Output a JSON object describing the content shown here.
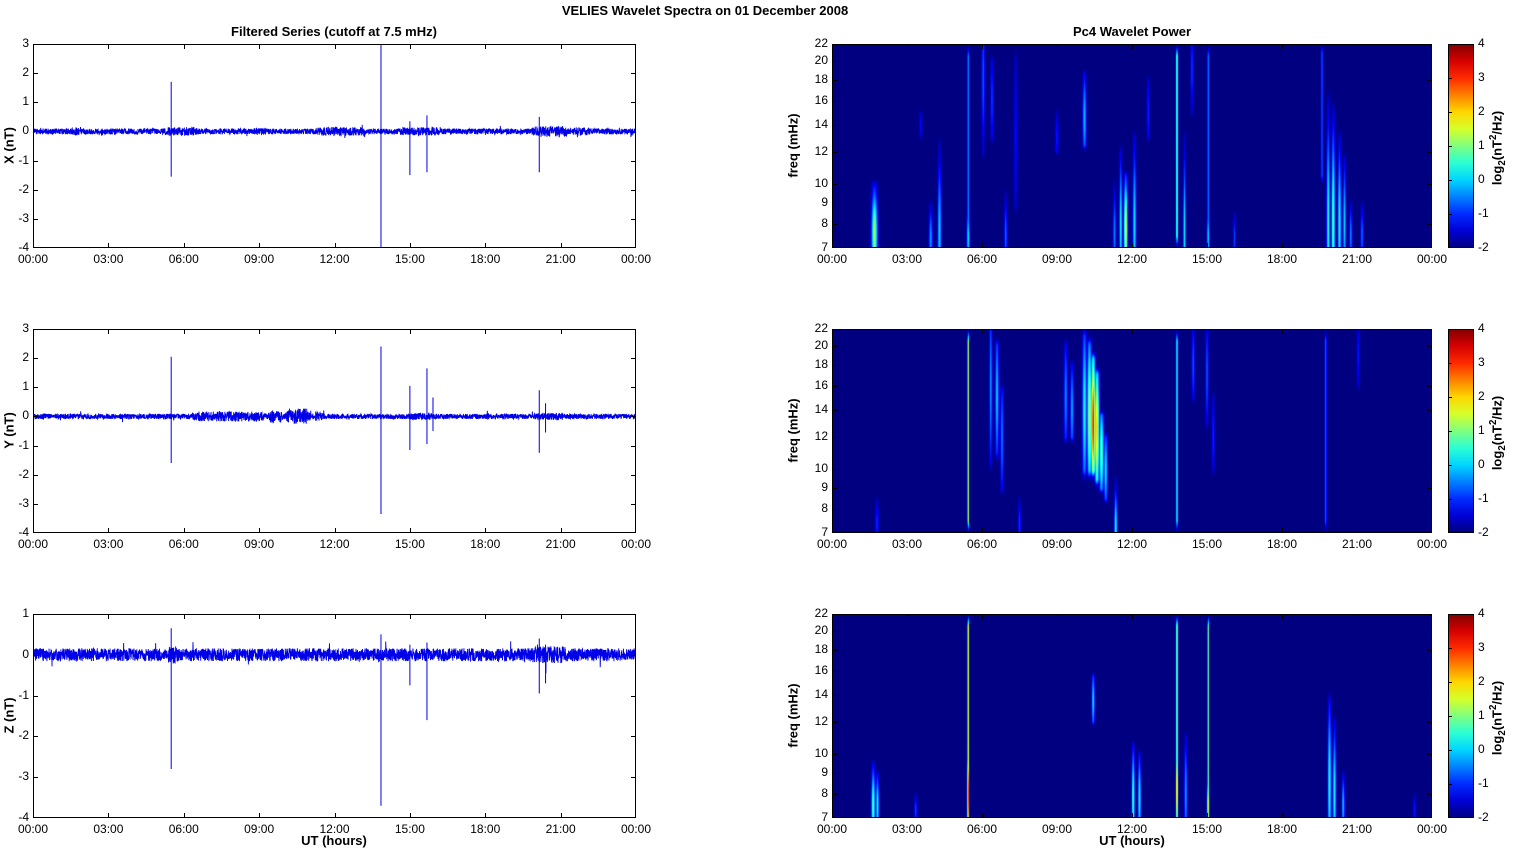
{
  "suptitle": "VELIES Wavelet Spectra on 01 December  2008",
  "titles": {
    "left": "Filtered Series (cutoff at 7.5 mHz)",
    "right": "Pc4 Wavelet Power"
  },
  "xlabel": "UT (hours)",
  "time_ticks": [
    "00:00",
    "03:00",
    "06:00",
    "09:00",
    "12:00",
    "15:00",
    "18:00",
    "21:00",
    "00:00"
  ],
  "time_tick_hours": [
    0,
    3,
    6,
    9,
    12,
    15,
    18,
    21,
    24
  ],
  "colors": {
    "trace": "#0000e8",
    "axis": "#000000",
    "heatmap_floor": "#000080"
  },
  "colorbar": {
    "min": -2,
    "max": 4,
    "ticks": [
      4,
      3,
      2,
      1,
      0,
      -1,
      -2
    ],
    "label": {
      "pre": "log",
      "sub": "2",
      "mid": "(nT",
      "sup": "2",
      "post": "/Hz)"
    }
  },
  "chart_data": [
    {
      "panel": "ts-x",
      "type": "line",
      "ylabel": "X (nT)",
      "ylim": [
        -4,
        3
      ],
      "yticks": [
        3,
        2,
        1,
        0,
        -1,
        -2,
        -3,
        -4
      ],
      "xlim_hours": [
        0,
        24
      ],
      "noise_base": 0.1,
      "noise_segments": [
        [
          1.5,
          1.9,
          0.06
        ],
        [
          5.2,
          6.6,
          0.05
        ],
        [
          8.7,
          9.4,
          0.03
        ],
        [
          11.2,
          13.3,
          0.05
        ],
        [
          14.6,
          16.3,
          0.04
        ],
        [
          19.8,
          21.4,
          0.09
        ],
        [
          21.4,
          22.4,
          0.04
        ]
      ],
      "spikes": [
        {
          "t": 5.5,
          "up": 1.7,
          "down": -1.55
        },
        {
          "t": 13.85,
          "up": 3.0,
          "down": -4.0
        },
        {
          "t": 15.0,
          "up": 0.35,
          "down": -1.5
        },
        {
          "t": 15.68,
          "up": 0.55,
          "down": -1.4
        },
        {
          "t": 20.15,
          "up": 0.5,
          "down": -1.4
        }
      ]
    },
    {
      "panel": "ts-y",
      "type": "line",
      "ylabel": "Y (nT)",
      "ylim": [
        -4,
        3
      ],
      "yticks": [
        3,
        2,
        1,
        0,
        -1,
        -2,
        -3,
        -4
      ],
      "xlim_hours": [
        0,
        24
      ],
      "noise_base": 0.09,
      "noise_segments": [
        [
          6.3,
          9.3,
          0.08
        ],
        [
          9.3,
          10.0,
          0.12
        ],
        [
          10.0,
          11.1,
          0.18
        ],
        [
          11.1,
          11.6,
          0.08
        ],
        [
          14.8,
          16.1,
          0.03
        ],
        [
          19.9,
          21.2,
          0.04
        ]
      ],
      "spikes": [
        {
          "t": 5.5,
          "up": 2.05,
          "down": -1.6
        },
        {
          "t": 13.85,
          "up": 2.4,
          "down": -3.35
        },
        {
          "t": 15.0,
          "up": 1.05,
          "down": -1.15
        },
        {
          "t": 15.68,
          "up": 1.65,
          "down": -0.95
        },
        {
          "t": 15.92,
          "up": 0.65,
          "down": -0.5
        },
        {
          "t": 20.15,
          "up": 0.9,
          "down": -1.25
        },
        {
          "t": 20.4,
          "up": 0.45,
          "down": -0.55
        }
      ]
    },
    {
      "panel": "ts-z",
      "type": "line",
      "ylabel": "Z (nT)",
      "ylim": [
        -4,
        1
      ],
      "yticks": [
        1,
        0,
        -1,
        -2,
        -3,
        -4
      ],
      "xlim_hours": [
        0,
        24
      ],
      "noise_base": 0.16,
      "noise_segments": [
        [
          5.3,
          5.8,
          0.09
        ],
        [
          13.7,
          14.1,
          0.05
        ],
        [
          19.8,
          21.3,
          0.05
        ]
      ],
      "spikes": [
        {
          "t": 5.5,
          "up": 0.65,
          "down": -2.8
        },
        {
          "t": 13.85,
          "up": 0.5,
          "down": -3.7
        },
        {
          "t": 15.0,
          "up": 0.25,
          "down": -0.75
        },
        {
          "t": 15.68,
          "up": 0.3,
          "down": -1.6
        },
        {
          "t": 20.15,
          "up": 0.4,
          "down": -0.95
        },
        {
          "t": 20.4,
          "up": 0.25,
          "down": -0.7
        }
      ]
    },
    {
      "panel": "wav-x",
      "type": "heatmap",
      "ylabel": "freq (mHz)",
      "yscale": "log",
      "ylim_mhz": [
        7,
        22
      ],
      "yticks": [
        22,
        20,
        18,
        16,
        14,
        12,
        10,
        9,
        8,
        7
      ],
      "clim": [
        -2,
        4
      ],
      "xlim_hours": [
        0,
        24
      ],
      "events": [
        {
          "t": 1.7,
          "f0": 7,
          "f1": 10,
          "peak": 1.2,
          "st": 0.08,
          "fp": 7.6
        },
        {
          "t": 3.55,
          "f0": 13,
          "f1": 15,
          "peak": -1.2,
          "st": 0.04
        },
        {
          "t": 3.95,
          "f0": 7,
          "f1": 9,
          "peak": -0.3,
          "st": 0.05,
          "fp": 7.4
        },
        {
          "t": 4.3,
          "f0": 7,
          "f1": 12.5,
          "peak": 0.1,
          "st": 0.05,
          "fp": 7.6
        },
        {
          "t": 5.45,
          "f0": 7,
          "f1": 22,
          "peak": -0.4,
          "st": 0.03,
          "flat": true
        },
        {
          "t": 5.45,
          "f0": 7,
          "f1": 9,
          "peak": 0.2,
          "st": 0.04,
          "fp": 7.4
        },
        {
          "t": 6.05,
          "f0": 12,
          "f1": 22,
          "peak": -0.7,
          "st": 0.045,
          "fp": 18
        },
        {
          "t": 6.4,
          "f0": 13,
          "f1": 20,
          "peak": -0.9,
          "st": 0.045,
          "fp": 16
        },
        {
          "t": 6.95,
          "f0": 7,
          "f1": 9.5,
          "peak": -0.6,
          "st": 0.04,
          "fp": 7.5
        },
        {
          "t": 7.35,
          "f0": 9,
          "f1": 20,
          "peak": -1.2,
          "st": 0.05,
          "fp": 13
        },
        {
          "t": 9.0,
          "f0": 12,
          "f1": 15,
          "peak": -1.1,
          "st": 0.05,
          "fp": 13
        },
        {
          "t": 10.1,
          "f0": 12.5,
          "f1": 18.5,
          "peak": -0.1,
          "st": 0.05,
          "fp": 14.5
        },
        {
          "t": 11.3,
          "f0": 7,
          "f1": 10,
          "peak": -0.4,
          "st": 0.04,
          "fp": 7.6
        },
        {
          "t": 11.55,
          "f0": 7,
          "f1": 12,
          "peak": 0.3,
          "st": 0.04,
          "fp": 8
        },
        {
          "t": 11.75,
          "f0": 7,
          "f1": 10.5,
          "peak": 1.8,
          "st": 0.05,
          "fp": 7.8
        },
        {
          "t": 12.1,
          "f0": 7,
          "f1": 13,
          "peak": 0.2,
          "st": 0.045,
          "fp": 8
        },
        {
          "t": 12.65,
          "f0": 13,
          "f1": 18,
          "peak": -1.0,
          "st": 0.04,
          "fp": 15
        },
        {
          "t": 13.8,
          "f0": 7,
          "f1": 22,
          "peak": 1.3,
          "st": 0.024,
          "flat": true
        },
        {
          "t": 14.1,
          "f0": 7,
          "f1": 13,
          "peak": 0.3,
          "st": 0.035,
          "fp": 7.6
        },
        {
          "t": 14.4,
          "f0": 15,
          "f1": 22,
          "peak": -0.9,
          "st": 0.04,
          "fp": 19
        },
        {
          "t": 15.05,
          "f0": 7,
          "f1": 22,
          "peak": -0.5,
          "st": 0.03,
          "flat": true
        },
        {
          "t": 15.05,
          "f0": 7,
          "f1": 9,
          "peak": 0.1,
          "st": 0.035,
          "fp": 7.4
        },
        {
          "t": 16.1,
          "f0": 7,
          "f1": 8.5,
          "peak": -0.8,
          "st": 0.035,
          "fp": 7.4
        },
        {
          "t": 19.6,
          "f0": 10,
          "f1": 22,
          "peak": -0.7,
          "st": 0.03,
          "flat": true
        },
        {
          "t": 19.85,
          "f0": 7,
          "f1": 16,
          "peak": 0.5,
          "st": 0.045,
          "fp": 8
        },
        {
          "t": 20.05,
          "f0": 7,
          "f1": 15,
          "peak": 0.9,
          "st": 0.05,
          "fp": 8
        },
        {
          "t": 20.3,
          "f0": 7,
          "f1": 13,
          "peak": 0.5,
          "st": 0.045,
          "fp": 8
        },
        {
          "t": 20.5,
          "f0": 7,
          "f1": 11.5,
          "peak": 0.1,
          "st": 0.04,
          "fp": 8
        },
        {
          "t": 20.75,
          "f0": 7,
          "f1": 9,
          "peak": -0.4,
          "st": 0.04,
          "fp": 7.5
        },
        {
          "t": 21.2,
          "f0": 7,
          "f1": 9,
          "peak": -0.6,
          "st": 0.04,
          "fp": 7.5
        }
      ]
    },
    {
      "panel": "wav-y",
      "type": "heatmap",
      "ylabel": "freq (mHz)",
      "yscale": "log",
      "ylim_mhz": [
        7,
        22
      ],
      "yticks": [
        22,
        20,
        18,
        16,
        14,
        12,
        10,
        9,
        8,
        7
      ],
      "clim": [
        -2,
        4
      ],
      "xlim_hours": [
        0,
        24
      ],
      "events": [
        {
          "t": 1.8,
          "f0": 7,
          "f1": 8.5,
          "peak": -1.0,
          "st": 0.05,
          "fp": 7.4
        },
        {
          "t": 5.45,
          "f0": 7,
          "f1": 22,
          "peak": 1.6,
          "st": 0.022,
          "flat": true
        },
        {
          "t": 6.35,
          "f0": 10.5,
          "f1": 22,
          "peak": -0.3,
          "st": 0.04,
          "fp": 16
        },
        {
          "t": 6.6,
          "f0": 11,
          "f1": 20,
          "peak": 0.0,
          "st": 0.05,
          "fp": 15
        },
        {
          "t": 6.8,
          "f0": 9,
          "f1": 15.5,
          "peak": -0.5,
          "st": 0.045,
          "fp": 12
        },
        {
          "t": 7.5,
          "f0": 7,
          "f1": 8.5,
          "peak": -0.9,
          "st": 0.04,
          "fp": 7.4
        },
        {
          "t": 9.35,
          "f0": 12,
          "f1": 20,
          "peak": -0.4,
          "st": 0.05,
          "fp": 15
        },
        {
          "t": 9.6,
          "f0": 12,
          "f1": 18,
          "peak": -0.2,
          "st": 0.05,
          "fp": 14
        },
        {
          "t": 10.1,
          "f0": 10,
          "f1": 21,
          "peak": 0.4,
          "st": 0.06,
          "fp": 14
        },
        {
          "t": 10.3,
          "f0": 10,
          "f1": 20,
          "peak": 1.5,
          "st": 0.06,
          "fp": 13.5
        },
        {
          "t": 10.45,
          "f0": 10,
          "f1": 18.5,
          "peak": 3.3,
          "st": 0.055,
          "fp": 13
        },
        {
          "t": 10.6,
          "f0": 9.5,
          "f1": 17,
          "peak": 2.2,
          "st": 0.06,
          "fp": 12.5
        },
        {
          "t": 10.78,
          "f0": 9,
          "f1": 13.5,
          "peak": 1.0,
          "st": 0.06,
          "fp": 11
        },
        {
          "t": 10.95,
          "f0": 8.5,
          "f1": 12,
          "peak": 0.2,
          "st": 0.05,
          "fp": 10
        },
        {
          "t": 11.35,
          "f0": 7,
          "f1": 9.5,
          "peak": 0.5,
          "st": 0.04,
          "fp": 7.2
        },
        {
          "t": 13.8,
          "f0": 7,
          "f1": 22,
          "peak": 0.7,
          "st": 0.024,
          "flat": true
        },
        {
          "t": 14.45,
          "f0": 15,
          "f1": 22,
          "peak": -0.7,
          "st": 0.04,
          "fp": 18
        },
        {
          "t": 15.0,
          "f0": 13,
          "f1": 22,
          "peak": -0.7,
          "st": 0.04,
          "fp": 17
        },
        {
          "t": 15.25,
          "f0": 10,
          "f1": 15,
          "peak": -1.0,
          "st": 0.04,
          "fp": 12
        },
        {
          "t": 19.75,
          "f0": 7,
          "f1": 22,
          "peak": -0.6,
          "st": 0.028,
          "flat": true
        },
        {
          "t": 21.05,
          "f0": 16,
          "f1": 22,
          "peak": -1.1,
          "st": 0.04,
          "fp": 19
        }
      ]
    },
    {
      "panel": "wav-z",
      "type": "heatmap",
      "ylabel": "freq (mHz)",
      "yscale": "log",
      "ylim_mhz": [
        7,
        22
      ],
      "yticks": [
        22,
        20,
        18,
        16,
        14,
        12,
        10,
        9,
        8,
        7
      ],
      "clim": [
        -2,
        4
      ],
      "xlim_hours": [
        0,
        24
      ],
      "events": [
        {
          "t": 1.65,
          "f0": 7,
          "f1": 9.5,
          "peak": 0.9,
          "st": 0.05,
          "fp": 7.5
        },
        {
          "t": 1.82,
          "f0": 7,
          "f1": 9,
          "peak": 0.5,
          "st": 0.04,
          "fp": 7.5
        },
        {
          "t": 3.35,
          "f0": 7,
          "f1": 8,
          "peak": -0.8,
          "st": 0.04,
          "fp": 7.3
        },
        {
          "t": 5.45,
          "f0": 7,
          "f1": 22,
          "peak": 2.0,
          "st": 0.022,
          "flat": true
        },
        {
          "t": 5.45,
          "f0": 7,
          "f1": 11,
          "peak": 3.3,
          "st": 0.025,
          "fp": 8
        },
        {
          "t": 10.45,
          "f0": 12,
          "f1": 15.5,
          "peak": 0.2,
          "st": 0.04,
          "fp": 13.5
        },
        {
          "t": 12.05,
          "f0": 7,
          "f1": 10.5,
          "peak": 0.9,
          "st": 0.04,
          "fp": 7.8
        },
        {
          "t": 12.3,
          "f0": 7,
          "f1": 10,
          "peak": 0.5,
          "st": 0.04,
          "fp": 7.8
        },
        {
          "t": 13.8,
          "f0": 7,
          "f1": 22,
          "peak": 1.8,
          "st": 0.022,
          "flat": true
        },
        {
          "t": 13.8,
          "f0": 7,
          "f1": 10.5,
          "peak": 3.0,
          "st": 0.025,
          "fp": 8.2
        },
        {
          "t": 14.15,
          "f0": 7,
          "f1": 11,
          "peak": -0.2,
          "st": 0.04,
          "fp": 8
        },
        {
          "t": 15.05,
          "f0": 7,
          "f1": 22,
          "peak": 1.2,
          "st": 0.022,
          "flat": true
        },
        {
          "t": 15.05,
          "f0": 7,
          "f1": 9,
          "peak": 1.8,
          "st": 0.03,
          "fp": 7.5
        },
        {
          "t": 19.9,
          "f0": 7,
          "f1": 13.5,
          "peak": 0.6,
          "st": 0.045,
          "fp": 8.5
        },
        {
          "t": 20.1,
          "f0": 7,
          "f1": 12,
          "peak": 0.4,
          "st": 0.045,
          "fp": 8
        },
        {
          "t": 20.45,
          "f0": 7,
          "f1": 9,
          "peak": 0.0,
          "st": 0.04,
          "fp": 7.5
        },
        {
          "t": 23.3,
          "f0": 7,
          "f1": 8,
          "peak": -1.1,
          "st": 0.04,
          "fp": 7.3
        }
      ]
    }
  ]
}
